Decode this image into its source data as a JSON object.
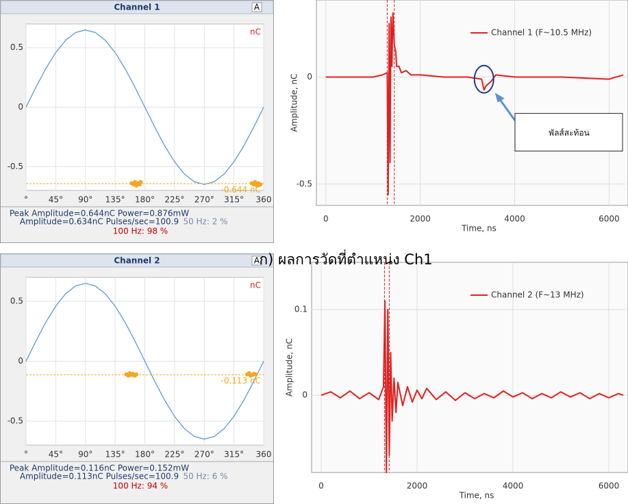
{
  "caption": "ก)  ผลการวัดที่ตำแหน่ง Ch1",
  "chart_data": [
    {
      "type": "phase",
      "title": "Channel 1",
      "corner_label": "A",
      "unit": "nC",
      "x": [
        0,
        15,
        30,
        45,
        60,
        75,
        90,
        105,
        120,
        135,
        150,
        165,
        180,
        195,
        210,
        225,
        240,
        255,
        270,
        285,
        300,
        315,
        330,
        345,
        360
      ],
      "series": [
        {
          "color": "#5b9bd5",
          "values": [
            0,
            0.168,
            0.325,
            0.46,
            0.563,
            0.628,
            0.65,
            0.628,
            0.563,
            0.46,
            0.325,
            0.168,
            0,
            -0.168,
            -0.325,
            -0.46,
            -0.563,
            -0.628,
            -0.65,
            -0.628,
            -0.563,
            -0.46,
            -0.325,
            -0.168,
            0
          ]
        }
      ],
      "points": {
        "color": "#f5a623",
        "x": [
          160,
          163,
          165,
          167,
          170,
          172,
          174,
          342,
          345,
          347,
          350,
          352,
          355
        ],
        "y": [
          -0.64,
          -0.65,
          -0.63,
          -0.66,
          -0.64,
          -0.65,
          -0.63,
          -0.64,
          -0.65,
          -0.63,
          -0.66,
          -0.64,
          -0.65
        ]
      },
      "threshold": {
        "value": -0.644,
        "label": "-0.644 nC",
        "color": "#f5a623"
      },
      "xlim": [
        0,
        360
      ],
      "ylim": [
        -0.7,
        0.7
      ],
      "xticks": [
        {
          "value": 0,
          "label": "°"
        },
        {
          "value": 45,
          "label": "45°"
        },
        {
          "value": 90,
          "label": "90°"
        },
        {
          "value": 135,
          "label": "135°"
        },
        {
          "value": 180,
          "label": "180°"
        },
        {
          "value": 225,
          "label": "225°"
        },
        {
          "value": 270,
          "label": "270°"
        },
        {
          "value": 315,
          "label": "315°"
        },
        360
      ],
      "yticks": [
        0.5,
        0,
        -0.5
      ],
      "grid": true,
      "stats": [
        "Peak Amplitude=0.644nC   Power=0.876mW",
        "Amplitude=0.634nC   Pulses/sec=100.9"
      ],
      "hz50": "50 Hz: 2 %",
      "hz100": "100 Hz: 98 %"
    },
    {
      "type": "line",
      "ylabel": "Amplitude, nC",
      "xlabel": "Time, ns",
      "x": [
        0,
        1000,
        1200,
        1300,
        1320,
        1340,
        1360,
        1380,
        1400,
        1420,
        1450,
        1480,
        1500,
        1550,
        1600,
        1700,
        1800,
        2000,
        2500,
        3000,
        3300,
        3350,
        3400,
        3500,
        3600,
        4000,
        5000,
        5500,
        6000,
        6300
      ],
      "series": [
        {
          "name": "Channel 1 (F~10.5 MHz)",
          "color": "#e02020",
          "values": [
            0,
            0,
            0.01,
            0.02,
            -0.55,
            0.25,
            -0.4,
            0.28,
            0.05,
            0.3,
            0.15,
            0.12,
            0.05,
            0.05,
            0.02,
            0.03,
            0.01,
            0.01,
            0,
            0,
            -0.01,
            -0.06,
            -0.04,
            -0.02,
            0.01,
            0,
            0,
            -0.005,
            -0.01,
            0.01
          ]
        }
      ],
      "cursors": [
        1300,
        1450
      ],
      "annotation": "พัลส์สะท้อน",
      "xlim": [
        -200,
        6400
      ],
      "ylim": [
        -0.6,
        0.36
      ],
      "xticks": [
        0,
        2000,
        4000,
        6000
      ],
      "yticks": [
        0,
        -0.5
      ],
      "grid": true
    },
    {
      "type": "phase",
      "title": "Channel 2",
      "corner_label": "A",
      "unit": "nC",
      "x": [
        0,
        15,
        30,
        45,
        60,
        75,
        90,
        105,
        120,
        135,
        150,
        165,
        180,
        195,
        210,
        225,
        240,
        255,
        270,
        285,
        300,
        315,
        330,
        345,
        360
      ],
      "series": [
        {
          "color": "#5b9bd5",
          "values": [
            0,
            0.168,
            0.325,
            0.46,
            0.563,
            0.628,
            0.65,
            0.628,
            0.563,
            0.46,
            0.325,
            0.168,
            0,
            -0.168,
            -0.325,
            -0.46,
            -0.563,
            -0.628,
            -0.65,
            -0.628,
            -0.563,
            -0.46,
            -0.325,
            -0.168,
            0
          ]
        }
      ],
      "points": {
        "color": "#f5a623",
        "x": [
          152,
          155,
          157,
          160,
          162,
          165,
          167,
          335,
          338,
          340,
          343,
          345,
          348
        ],
        "y": [
          -0.11,
          -0.12,
          -0.1,
          -0.115,
          -0.105,
          -0.12,
          -0.11,
          -0.11,
          -0.1,
          -0.12,
          -0.115,
          -0.105,
          -0.11
        ]
      },
      "threshold": {
        "value": -0.113,
        "label": "-0.113 nC",
        "color": "#f5a623"
      },
      "xlim": [
        0,
        360
      ],
      "ylim": [
        -0.7,
        0.7
      ],
      "xticks": [
        {
          "value": 0,
          "label": "°"
        },
        {
          "value": 45,
          "label": "45°"
        },
        {
          "value": 90,
          "label": "90°"
        },
        {
          "value": 135,
          "label": "135°"
        },
        {
          "value": 180,
          "label": "180°"
        },
        {
          "value": 225,
          "label": "225°"
        },
        {
          "value": 270,
          "label": "270°"
        },
        {
          "value": 315,
          "label": "315°"
        },
        360
      ],
      "yticks": [
        0.5,
        0,
        -0.5
      ],
      "grid": true,
      "stats": [
        "Peak Amplitude=0.116nC   Power=0.152mW",
        "Amplitude=0.113nC   Pulses/sec=100.9"
      ],
      "hz50": "50 Hz: 6 %",
      "hz100": "100 Hz: 94 %"
    },
    {
      "type": "line",
      "ylabel": "Amplitude, nC",
      "xlabel": "Time, ns",
      "x": [
        0,
        200,
        400,
        600,
        800,
        1000,
        1200,
        1300,
        1330,
        1360,
        1390,
        1420,
        1450,
        1480,
        1520,
        1560,
        1600,
        1700,
        1800,
        1900,
        2000,
        2100,
        2200,
        2400,
        2600,
        2800,
        3000,
        3200,
        3400,
        3600,
        3800,
        4000,
        4200,
        4400,
        4600,
        4800,
        5000,
        5200,
        5400,
        5600,
        5800,
        6000,
        6200,
        6300
      ],
      "series": [
        {
          "name": "Channel 2 (F~13 MHz)",
          "color": "#e02020",
          "values": [
            0,
            0.004,
            -0.003,
            0.005,
            -0.004,
            0.003,
            -0.005,
            0.01,
            0.11,
            -0.09,
            0.1,
            -0.07,
            0.05,
            -0.03,
            0.02,
            -0.02,
            0.015,
            -0.012,
            0.01,
            -0.008,
            0.006,
            -0.004,
            0.008,
            -0.005,
            0.004,
            -0.006,
            0.003,
            -0.004,
            0.002,
            -0.003,
            0.005,
            -0.002,
            0.003,
            -0.004,
            0.002,
            -0.003,
            0.004,
            -0.002,
            0.003,
            -0.004,
            0.002,
            -0.003,
            0.002,
            0
          ]
        }
      ],
      "cursors": [
        1320,
        1420
      ],
      "xlim": [
        -200,
        6400
      ],
      "ylim": [
        -0.09,
        0.155
      ],
      "xticks": [
        0,
        2000,
        4000,
        6000
      ],
      "yticks": [
        0.1,
        0
      ],
      "grid": true
    }
  ]
}
